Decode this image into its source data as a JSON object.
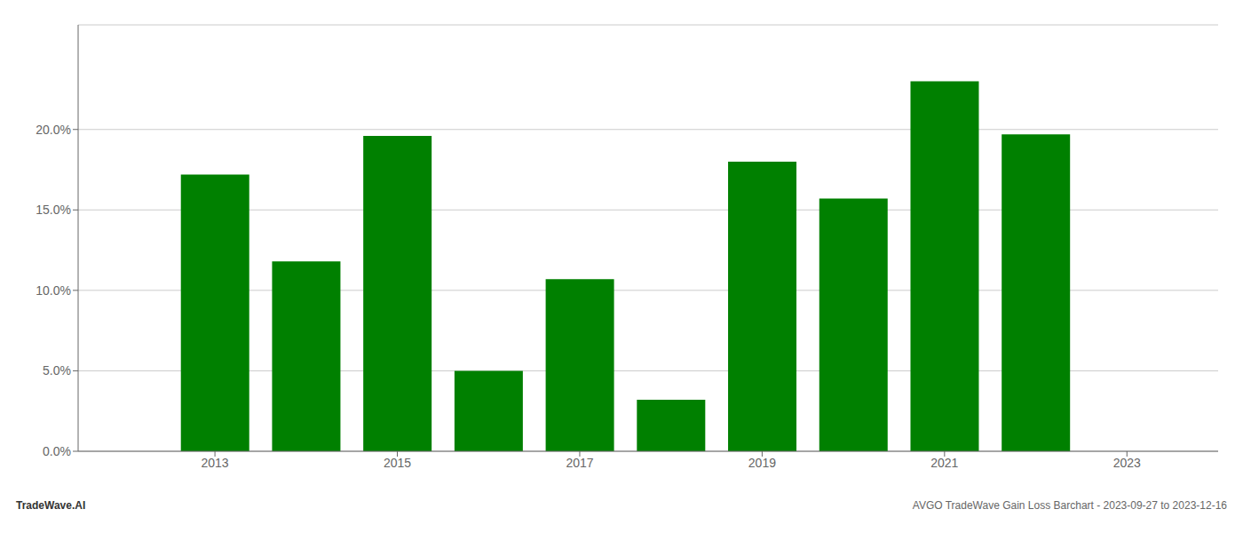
{
  "chart_data": {
    "type": "bar",
    "x": [
      2013,
      2014,
      2015,
      2016,
      2017,
      2018,
      2019,
      2020,
      2021,
      2022
    ],
    "values": [
      0.172,
      0.118,
      0.196,
      0.05,
      0.107,
      0.032,
      0.18,
      0.157,
      0.23,
      0.197
    ],
    "color": "#008000",
    "xlim": [
      2011.5,
      2024.0
    ],
    "xticks": [
      2013,
      2015,
      2017,
      2019,
      2021,
      2023
    ],
    "ylim": [
      0,
      0.265
    ],
    "yticks": [
      {
        "value": 0.0,
        "label": "0.0%"
      },
      {
        "value": 0.05,
        "label": "5.0%"
      },
      {
        "value": 0.1,
        "label": "10.0%"
      },
      {
        "value": 0.15,
        "label": "15.0%"
      },
      {
        "value": 0.2,
        "label": "20.0%"
      }
    ],
    "grid": true,
    "annotations": [
      "TradeWave.AI",
      "AVGO TradeWave Gain Loss Barchart - 2023-09-27 to 2023-12-16"
    ]
  }
}
